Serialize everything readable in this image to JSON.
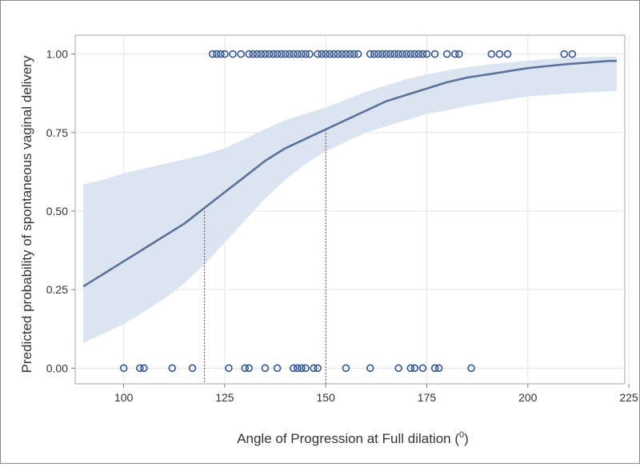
{
  "chart_data": {
    "type": "line",
    "title": "",
    "xlabel": "Angle of Progression at Full dilation (",
    "xlabel_superscript": "0",
    "xlabel_suffix": ")",
    "ylabel": "Predicted probability of spontaneous vaginal delivery",
    "xlim": [
      88,
      224
    ],
    "ylim": [
      -0.05,
      1.06
    ],
    "xticks": [
      100,
      125,
      150,
      175,
      200,
      225
    ],
    "xtick_labels": [
      "100",
      "125",
      "150",
      "175",
      "200",
      "225"
    ],
    "yticks": [
      0,
      0.25,
      0.5,
      0.75,
      1
    ],
    "ytick_labels": [
      "0.00",
      "0.25",
      "0.50",
      "0.75",
      "1.00"
    ],
    "grid": true,
    "series": [
      {
        "name": "Predicted probability",
        "color": "#5a7199",
        "x": [
          90,
          95,
          100,
          105,
          110,
          115,
          120,
          125,
          130,
          135,
          140,
          145,
          150,
          155,
          160,
          165,
          170,
          175,
          180,
          185,
          190,
          195,
          200,
          205,
          210,
          215,
          220,
          222
        ],
        "y": [
          0.26,
          0.3,
          0.34,
          0.38,
          0.42,
          0.46,
          0.51,
          0.56,
          0.61,
          0.66,
          0.7,
          0.73,
          0.76,
          0.79,
          0.82,
          0.85,
          0.87,
          0.89,
          0.91,
          0.925,
          0.935,
          0.945,
          0.955,
          0.962,
          0.968,
          0.973,
          0.978,
          0.978
        ]
      }
    ],
    "confidence_band": {
      "color": "#dbe5f2",
      "x": [
        90,
        95,
        100,
        105,
        110,
        115,
        120,
        125,
        130,
        135,
        140,
        145,
        150,
        155,
        160,
        165,
        170,
        175,
        180,
        185,
        190,
        195,
        200,
        205,
        210,
        215,
        220,
        222
      ],
      "lower": [
        0.08,
        0.11,
        0.14,
        0.18,
        0.22,
        0.27,
        0.33,
        0.4,
        0.47,
        0.54,
        0.6,
        0.65,
        0.69,
        0.72,
        0.75,
        0.77,
        0.79,
        0.81,
        0.82,
        0.835,
        0.845,
        0.855,
        0.865,
        0.87,
        0.875,
        0.878,
        0.881,
        0.882
      ],
      "upper": [
        0.585,
        0.6,
        0.62,
        0.635,
        0.65,
        0.665,
        0.68,
        0.7,
        0.73,
        0.76,
        0.79,
        0.81,
        0.83,
        0.855,
        0.88,
        0.9,
        0.92,
        0.935,
        0.948,
        0.958,
        0.966,
        0.973,
        0.979,
        0.984,
        0.988,
        0.99,
        0.992,
        0.993
      ]
    },
    "reference_lines": [
      {
        "x": 120,
        "y": 0.51,
        "color": "#cc1111"
      },
      {
        "x": 150,
        "y": 0.76,
        "color": "#cc1111"
      }
    ],
    "observations": {
      "marker_color": "#2f5597",
      "y1_x": [
        122,
        123,
        124,
        125,
        127,
        129,
        131,
        132,
        133,
        134,
        135,
        136,
        137,
        138,
        139,
        140,
        141,
        142,
        143,
        144,
        145,
        146,
        148,
        149,
        150,
        151,
        152,
        153,
        154,
        155,
        156,
        157,
        158,
        161,
        162,
        163,
        164,
        165,
        166,
        167,
        168,
        169,
        170,
        171,
        172,
        173,
        174,
        175,
        177,
        180,
        182,
        183,
        191,
        193,
        195,
        209,
        211
      ],
      "y0_x": [
        100,
        104,
        105,
        112,
        117,
        126,
        130,
        131,
        135,
        138,
        142,
        143,
        144,
        145,
        147,
        148,
        155,
        161,
        168,
        171,
        172,
        174,
        177,
        178,
        186
      ]
    }
  }
}
